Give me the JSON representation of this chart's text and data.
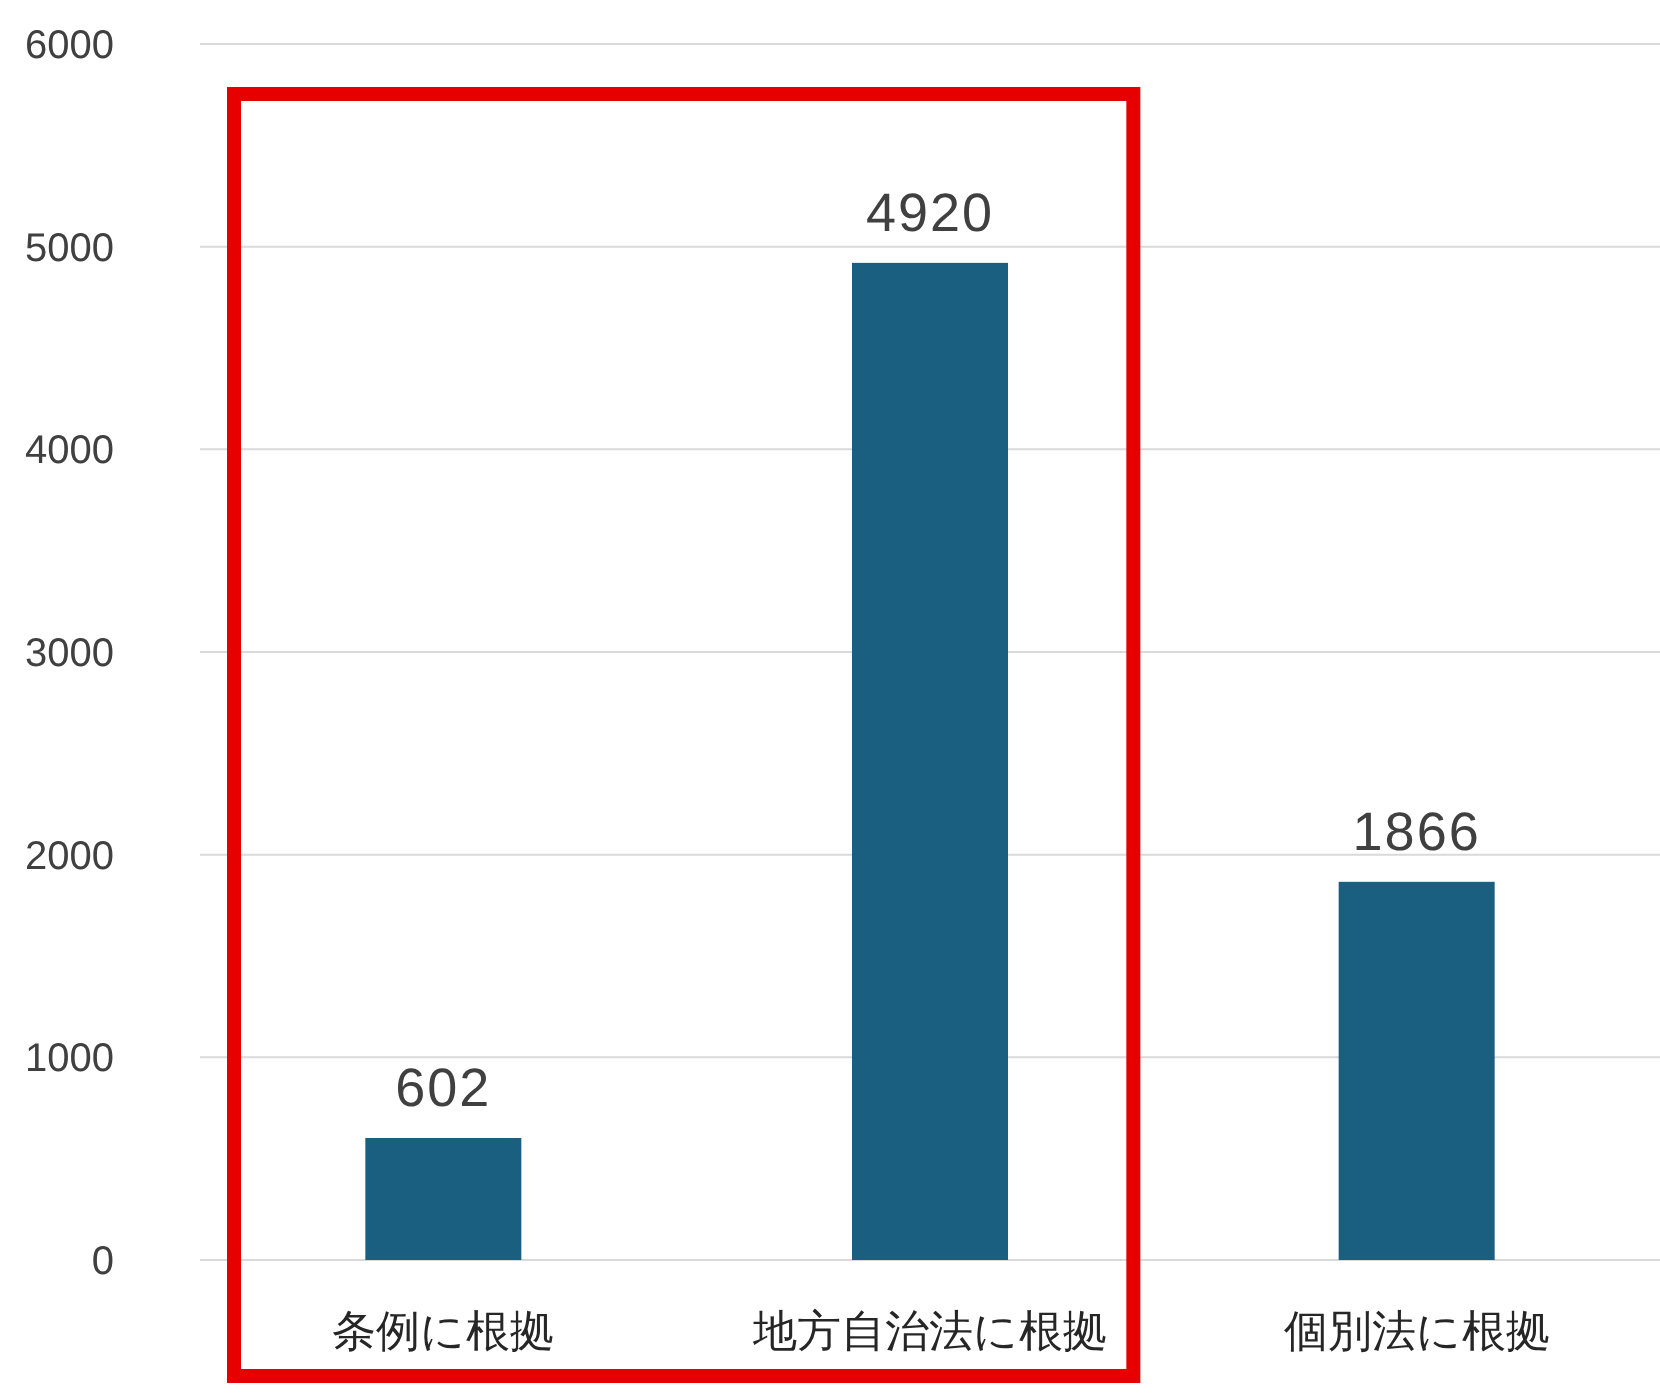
{
  "chart_data": {
    "type": "bar",
    "categories": [
      "条例に根拠",
      "地方自治法に根拠",
      "個別法に根拠"
    ],
    "values": [
      602,
      4920,
      1866
    ],
    "color": "#1a5e80",
    "ylim": [
      0,
      6000
    ],
    "yticks": [
      0,
      1000,
      2000,
      3000,
      4000,
      5000,
      6000
    ],
    "grid": "y",
    "data_labels": true
  }
}
